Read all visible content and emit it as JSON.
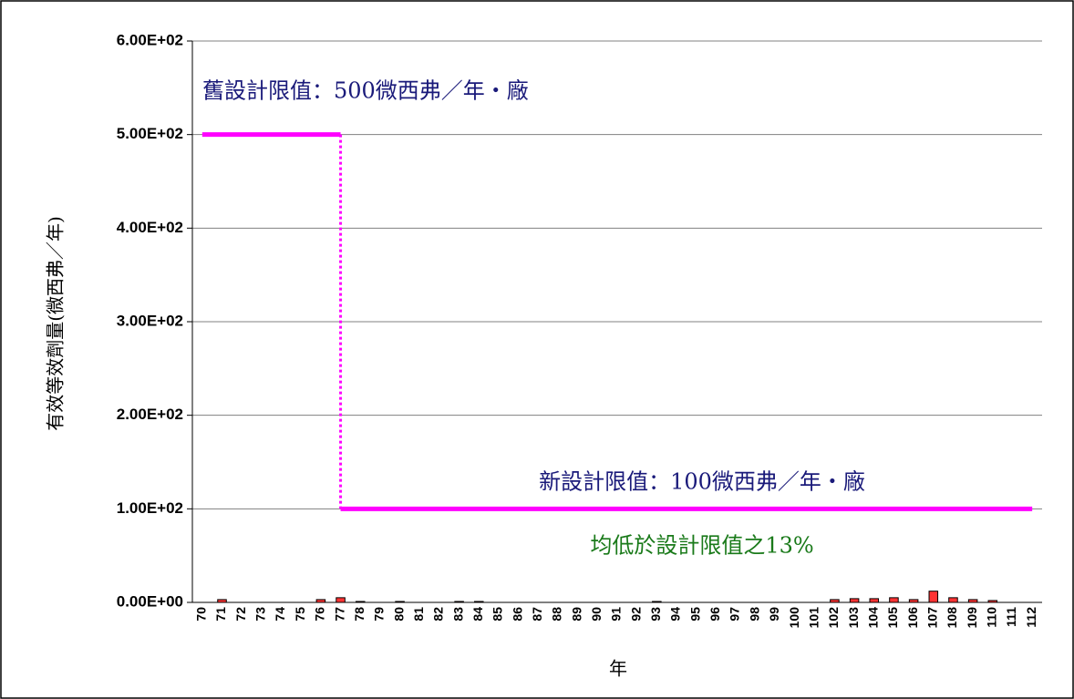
{
  "chart_data": {
    "type": "bar",
    "x_label": "年",
    "y_label": "有效等效劑量(微西弗／年)",
    "annotations": [
      "舊設計限值：500微西弗／年・廠",
      "新設計限值：100微西弗／年・廠",
      "均低於設計限值之13%"
    ],
    "categories": [
      "70",
      "71",
      "72",
      "73",
      "74",
      "75",
      "76",
      "77",
      "78",
      "79",
      "80",
      "81",
      "82",
      "83",
      "84",
      "85",
      "86",
      "87",
      "88",
      "89",
      "90",
      "91",
      "92",
      "93",
      "94",
      "95",
      "96",
      "97",
      "98",
      "99",
      "100",
      "101",
      "102",
      "103",
      "104",
      "105",
      "106",
      "107",
      "108",
      "109",
      "110",
      "111",
      "112"
    ],
    "values": [
      0,
      3,
      0,
      0,
      0,
      0,
      3,
      5,
      1,
      0,
      1,
      0,
      0,
      1,
      1,
      0,
      0,
      0,
      0,
      0,
      0,
      0,
      0,
      1,
      0,
      0,
      0,
      0,
      0,
      0,
      0,
      0,
      3,
      4,
      4,
      5,
      3,
      12,
      5,
      3,
      2,
      0,
      0
    ],
    "color": "#ff3333",
    "limit_series": [
      {
        "color": "#ff00ff",
        "values": [
          500,
          500,
          500,
          500,
          500,
          500,
          500,
          500,
          null,
          null,
          null,
          null,
          null,
          null,
          null,
          null,
          null,
          null,
          null,
          null,
          null,
          null,
          null,
          null,
          null,
          null,
          null,
          null,
          null,
          null,
          null,
          null,
          null,
          null,
          null,
          null,
          null,
          null,
          null,
          null,
          null,
          null,
          null
        ]
      },
      {
        "color": "#ff00ff",
        "values": [
          null,
          null,
          null,
          null,
          null,
          null,
          null,
          100,
          100,
          100,
          100,
          100,
          100,
          100,
          100,
          100,
          100,
          100,
          100,
          100,
          100,
          100,
          100,
          100,
          100,
          100,
          100,
          100,
          100,
          100,
          100,
          100,
          100,
          100,
          100,
          100,
          100,
          100,
          100,
          100,
          100,
          100,
          100
        ]
      }
    ],
    "ylim": [
      0,
      600
    ],
    "yticks": [
      {
        "value": 0,
        "label": "0.00E+00"
      },
      {
        "value": 100,
        "label": "1.00E+02"
      },
      {
        "value": 200,
        "label": "2.00E+02"
      },
      {
        "value": 300,
        "label": "3.00E+02"
      },
      {
        "value": 400,
        "label": "4.00E+02"
      },
      {
        "value": 500,
        "label": "5.00E+02"
      },
      {
        "value": 600,
        "label": "6.00E+02"
      }
    ],
    "grid": true
  }
}
